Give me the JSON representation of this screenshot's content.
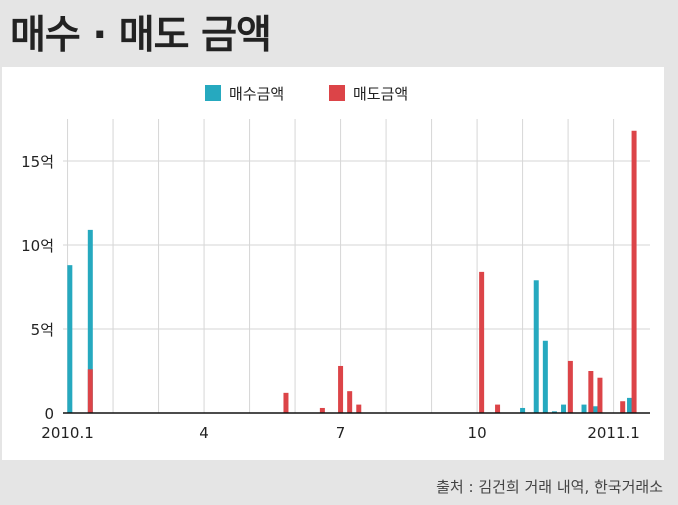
{
  "title": "매수 · 매도 금액",
  "source": "출처 : 김건희 거래 내역, 한국거래소",
  "chart_data": {
    "type": "bar",
    "title": "",
    "xlabel": "",
    "ylabel": "",
    "unit": "억",
    "ylim": [
      0,
      17.5
    ],
    "yticks": [
      {
        "value": 0,
        "label": "0"
      },
      {
        "value": 5,
        "label": "5억"
      },
      {
        "value": 10,
        "label": "10억"
      },
      {
        "value": 15,
        "label": "15억"
      }
    ],
    "xticks": [
      {
        "label": "2010.1",
        "month": 1
      },
      {
        "label": "4",
        "month": 4
      },
      {
        "label": "7",
        "month": 7
      },
      {
        "label": "10",
        "month": 10
      },
      {
        "label": "2011.1",
        "month": 13
      }
    ],
    "x_range": [
      0.9,
      13.8
    ],
    "grid": true,
    "legend_position": "top-center",
    "series": [
      {
        "name": "매수금액",
        "color": "#26a9bf",
        "points": [
          {
            "month": 1.05,
            "value": 8.8
          },
          {
            "month": 1.5,
            "value": 10.9
          },
          {
            "month": 11.0,
            "value": 0.3
          },
          {
            "month": 11.3,
            "value": 7.9
          },
          {
            "month": 11.5,
            "value": 4.3
          },
          {
            "month": 11.7,
            "value": 0.1
          },
          {
            "month": 11.9,
            "value": 0.5
          },
          {
            "month": 12.35,
            "value": 0.5
          },
          {
            "month": 12.6,
            "value": 0.4
          },
          {
            "month": 13.35,
            "value": 0.9
          }
        ]
      },
      {
        "name": "매도금액",
        "color": "#dc4448",
        "points": [
          {
            "month": 1.5,
            "value": 2.6
          },
          {
            "month": 5.8,
            "value": 1.2
          },
          {
            "month": 6.6,
            "value": 0.3
          },
          {
            "month": 7.0,
            "value": 2.8
          },
          {
            "month": 7.2,
            "value": 1.3
          },
          {
            "month": 7.4,
            "value": 0.5
          },
          {
            "month": 10.1,
            "value": 8.4
          },
          {
            "month": 10.45,
            "value": 0.5
          },
          {
            "month": 12.05,
            "value": 3.1
          },
          {
            "month": 12.5,
            "value": 2.5
          },
          {
            "month": 12.7,
            "value": 2.1
          },
          {
            "month": 13.2,
            "value": 0.7
          },
          {
            "month": 13.45,
            "value": 16.8
          }
        ]
      }
    ]
  }
}
